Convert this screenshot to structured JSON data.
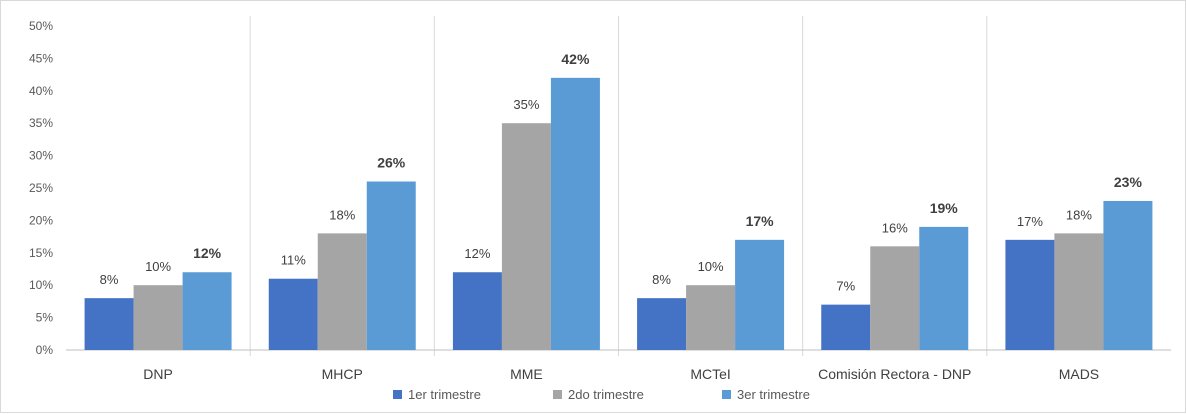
{
  "chart_data": {
    "type": "bar",
    "categories": [
      "DNP",
      "MHCP",
      "MME",
      "MCTeI",
      "Comisión Rectora - DNP",
      "MADS"
    ],
    "series": [
      {
        "name": "1er trimestre",
        "values": [
          8,
          11,
          12,
          8,
          7,
          17
        ],
        "labels": [
          "8%",
          "11%",
          "12%",
          "8%",
          "7%",
          "17%"
        ],
        "bold_labels": false,
        "color": "#4472c4"
      },
      {
        "name": "2do trimestre",
        "values": [
          10,
          18,
          35,
          10,
          16,
          18
        ],
        "labels": [
          "10%",
          "18%",
          "35%",
          "10%",
          "16%",
          "18%"
        ],
        "bold_labels": false,
        "color": "#a5a5a5"
      },
      {
        "name": "3er trimestre",
        "values": [
          12,
          26,
          42,
          17,
          19,
          23
        ],
        "labels": [
          "12%",
          "26%",
          "42%",
          "17%",
          "19%",
          "23%"
        ],
        "bold_labels": true,
        "color": "#5b9bd5"
      }
    ],
    "y_ticks": [
      "0%",
      "5%",
      "10%",
      "15%",
      "20%",
      "25%",
      "30%",
      "35%",
      "40%",
      "45%",
      "50%"
    ],
    "ylim": [
      0,
      50
    ],
    "grid": false,
    "category_separators": true,
    "legend_position": "bottom",
    "title": "",
    "xlabel": "",
    "ylabel": ""
  }
}
